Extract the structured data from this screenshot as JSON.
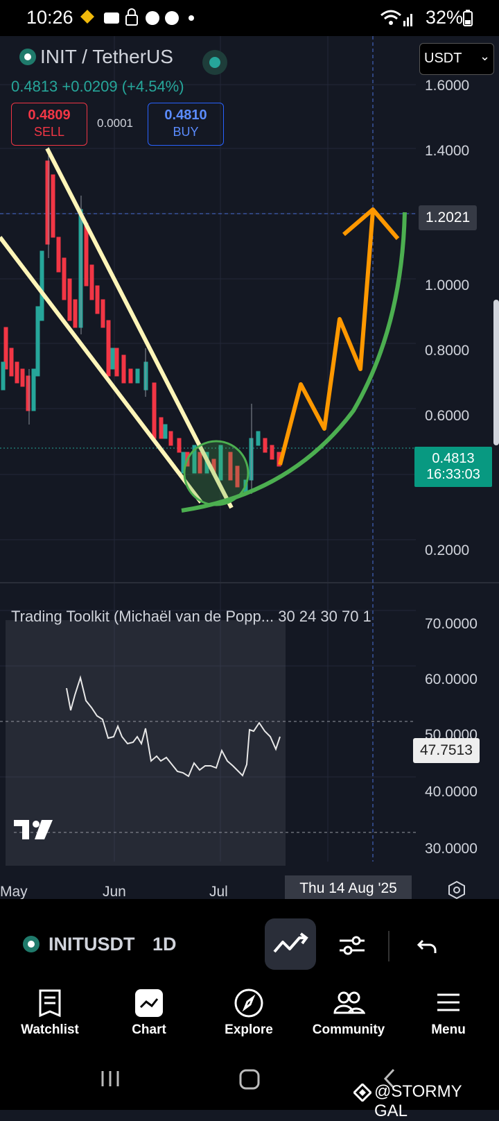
{
  "status_bar": {
    "time": "10:26",
    "battery": "32%"
  },
  "header": {
    "symbol": "INIT / TetherUS",
    "last_price": "0.4813",
    "change": "+0.0209",
    "change_pct": "(+4.54%)",
    "sell_price": "0.4809",
    "sell_label": "SELL",
    "buy_price": "0.4810",
    "buy_label": "BUY",
    "spread": "0.0001",
    "currency": "USDT"
  },
  "price_axis": {
    "labels": [
      "1.6000",
      "1.4000",
      "1.0000",
      "0.8000",
      "0.6000",
      "0.2000"
    ],
    "crosshair_value": "1.2021",
    "current_price": "0.4813",
    "countdown": "16:33:03"
  },
  "indicator": {
    "title": "Trading Toolkit (Michaël van de Popp... 30 24 30 70 1",
    "axis_labels": [
      "70.0000",
      "60.0000",
      "50.0000",
      "40.0000",
      "30.0000"
    ],
    "current_value": "47.7513"
  },
  "time_axis": {
    "labels": [
      "May",
      "Jun",
      "Jul"
    ],
    "crosshair_date": "Thu 14 Aug '25"
  },
  "toolbar": {
    "symbol": "INITUSDT",
    "interval": "1D"
  },
  "bottom_nav": {
    "items": [
      {
        "label": "Watchlist",
        "icon": "watchlist-icon"
      },
      {
        "label": "Chart",
        "icon": "chart-icon"
      },
      {
        "label": "Explore",
        "icon": "compass-icon"
      },
      {
        "label": "Community",
        "icon": "community-icon"
      },
      {
        "label": "Menu",
        "icon": "menu-icon"
      }
    ]
  },
  "watermark": "@STORMY GAL",
  "colors": {
    "up": "#26a69a",
    "down": "#f23645",
    "buy": "#2962ff",
    "annotation_yellow": "#fff5b8",
    "annotation_orange": "#ff9800",
    "annotation_green": "#4caf50"
  }
}
